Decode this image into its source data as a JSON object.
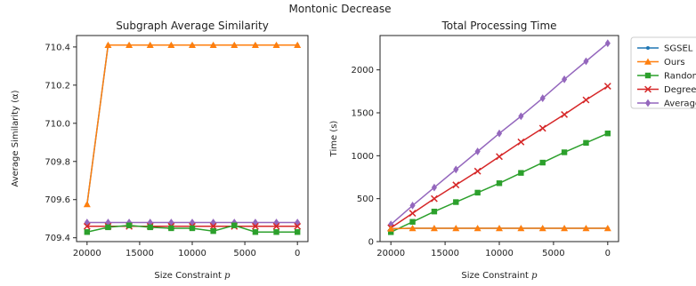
{
  "suptitle": "Montonic Decrease",
  "legend": [
    {
      "name": "SGSEL",
      "color": "#1f77b4",
      "marker": "point"
    },
    {
      "name": "Ours",
      "color": "#ff7f0e",
      "marker": "triangle"
    },
    {
      "name": "Random",
      "color": "#2ca02c",
      "marker": "square"
    },
    {
      "name": "Degree",
      "color": "#d62728",
      "marker": "x"
    },
    {
      "name": "Average",
      "color": "#9467bd",
      "marker": "diamond"
    }
  ],
  "chart_data": [
    {
      "type": "line",
      "title": "Subgraph Average Similarity",
      "xlabel": "Size Constraint",
      "xlabel_var": "p",
      "ylabel": "Average Similarity (α)",
      "xlim": [
        21000,
        -1000
      ],
      "ylim": [
        709.38,
        710.46
      ],
      "xticks": [
        20000,
        15000,
        10000,
        5000,
        0
      ],
      "yticks": [
        709.4,
        709.6,
        709.8,
        710.0,
        710.2,
        710.4
      ],
      "ytick_labels": [
        "709.4",
        "709.6",
        "709.8",
        "710.0",
        "710.2",
        "710.4"
      ],
      "x": [
        20000,
        18000,
        16000,
        14000,
        12000,
        10000,
        8000,
        6000,
        4000,
        2000,
        0
      ],
      "series": [
        {
          "name": "Average",
          "values": [
            709.48,
            709.48,
            709.48,
            709.48,
            709.48,
            709.48,
            709.48,
            709.48,
            709.48,
            709.48,
            709.48
          ]
        },
        {
          "name": "Degree",
          "values": [
            709.46,
            709.46,
            709.46,
            709.46,
            709.46,
            709.46,
            709.46,
            709.46,
            709.46,
            709.46,
            709.46
          ]
        },
        {
          "name": "Random",
          "values": [
            709.43,
            709.455,
            709.465,
            709.455,
            709.45,
            709.45,
            709.435,
            709.465,
            709.43,
            709.43,
            709.43
          ]
        },
        {
          "name": "SGSEL",
          "values": [
            709.575,
            710.41,
            710.41,
            710.41,
            710.41,
            710.41,
            710.41,
            710.41,
            710.41,
            710.41,
            710.41
          ]
        },
        {
          "name": "Ours",
          "values": [
            709.575,
            710.41,
            710.41,
            710.41,
            710.41,
            710.41,
            710.41,
            710.41,
            710.41,
            710.41,
            710.41
          ]
        }
      ]
    },
    {
      "type": "line",
      "title": "Total Processing Time",
      "xlabel": "Size Constraint",
      "xlabel_var": "p",
      "ylabel": "Time (s)",
      "xlim": [
        21000,
        -1000
      ],
      "ylim": [
        0,
        2400
      ],
      "xticks": [
        20000,
        15000,
        10000,
        5000,
        0
      ],
      "yticks": [
        0,
        500,
        1000,
        1500,
        2000
      ],
      "ytick_labels": [
        "0",
        "500",
        "1000",
        "1500",
        "2000"
      ],
      "x": [
        20000,
        18000,
        16000,
        14000,
        12000,
        10000,
        8000,
        6000,
        4000,
        2000,
        0
      ],
      "series": [
        {
          "name": "Average",
          "values": [
            200,
            420,
            630,
            840,
            1050,
            1260,
            1460,
            1670,
            1890,
            2100,
            2310
          ]
        },
        {
          "name": "Degree",
          "values": [
            160,
            330,
            500,
            660,
            820,
            990,
            1160,
            1320,
            1480,
            1650,
            1810
          ]
        },
        {
          "name": "Random",
          "values": [
            110,
            230,
            350,
            460,
            570,
            680,
            800,
            920,
            1040,
            1150,
            1260
          ]
        },
        {
          "name": "SGSEL",
          "values": [
            150,
            155,
            155,
            155,
            155,
            155,
            155,
            155,
            155,
            155,
            155
          ]
        },
        {
          "name": "Ours",
          "values": [
            150,
            155,
            155,
            155,
            155,
            155,
            155,
            155,
            155,
            155,
            155
          ]
        }
      ]
    }
  ]
}
